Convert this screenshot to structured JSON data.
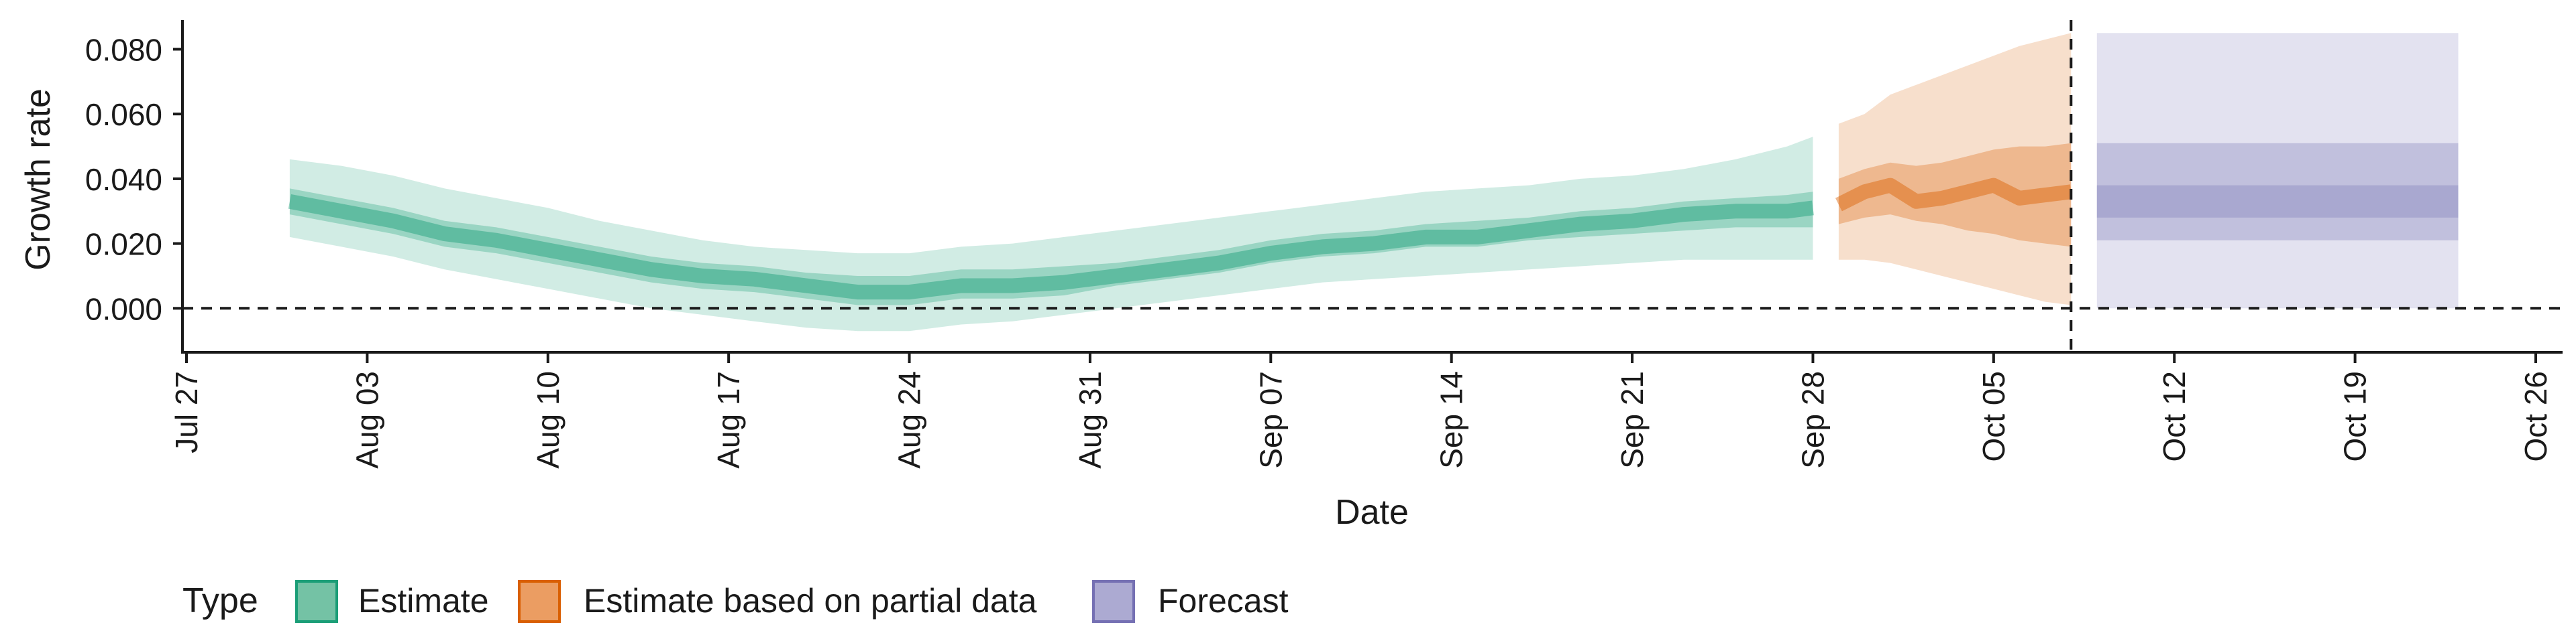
{
  "chart_data": {
    "type": "area",
    "xlabel": "Date",
    "ylabel": "Growth rate",
    "x_ticks": [
      "Jul 27",
      "Aug 03",
      "Aug 10",
      "Aug 17",
      "Aug 24",
      "Aug 31",
      "Sep 07",
      "Sep 14",
      "Sep 21",
      "Sep 28",
      "Oct 05",
      "Oct 12",
      "Oct 19",
      "Oct 26"
    ],
    "y_ticks": [
      "0.000",
      "0.020",
      "0.040",
      "0.060",
      "0.080"
    ],
    "xlim": [
      "2020-07-27",
      "2020-10-26"
    ],
    "ylim": [
      -0.014,
      0.089
    ],
    "reference_lines": {
      "horizontal_y": 0,
      "vertical_x": "2020-10-08"
    },
    "legend": {
      "title": "Type",
      "position": "bottom-left",
      "entries": [
        {
          "label": "Estimate",
          "color": "#1b9e77"
        },
        {
          "label": "Estimate based on partial data",
          "color": "#d95f02"
        },
        {
          "label": "Forecast",
          "color": "#7570b3"
        }
      ]
    },
    "series": [
      {
        "name": "Estimate",
        "color": "#1b9e77",
        "x": [
          "2020-07-31",
          "2020-08-02",
          "2020-08-04",
          "2020-08-06",
          "2020-08-08",
          "2020-08-10",
          "2020-08-12",
          "2020-08-14",
          "2020-08-16",
          "2020-08-18",
          "2020-08-20",
          "2020-08-22",
          "2020-08-24",
          "2020-08-26",
          "2020-08-28",
          "2020-08-30",
          "2020-09-01",
          "2020-09-03",
          "2020-09-05",
          "2020-09-07",
          "2020-09-09",
          "2020-09-11",
          "2020-09-13",
          "2020-09-15",
          "2020-09-17",
          "2020-09-19",
          "2020-09-21",
          "2020-09-23",
          "2020-09-25",
          "2020-09-27",
          "2020-09-28"
        ],
        "median": [
          0.033,
          0.03,
          0.027,
          0.023,
          0.021,
          0.018,
          0.015,
          0.012,
          0.01,
          0.009,
          0.007,
          0.005,
          0.005,
          0.007,
          0.007,
          0.008,
          0.01,
          0.012,
          0.014,
          0.017,
          0.019,
          0.02,
          0.022,
          0.022,
          0.024,
          0.026,
          0.027,
          0.029,
          0.03,
          0.03,
          0.031
        ],
        "lower_50": [
          0.029,
          0.026,
          0.023,
          0.019,
          0.017,
          0.014,
          0.011,
          0.008,
          0.006,
          0.005,
          0.003,
          0.001,
          0.001,
          0.003,
          0.003,
          0.004,
          0.007,
          0.009,
          0.011,
          0.014,
          0.016,
          0.017,
          0.019,
          0.019,
          0.021,
          0.022,
          0.023,
          0.024,
          0.025,
          0.025,
          0.025
        ],
        "upper_50": [
          0.037,
          0.034,
          0.031,
          0.027,
          0.025,
          0.022,
          0.019,
          0.016,
          0.014,
          0.013,
          0.011,
          0.01,
          0.01,
          0.012,
          0.012,
          0.013,
          0.014,
          0.016,
          0.018,
          0.021,
          0.023,
          0.024,
          0.026,
          0.027,
          0.028,
          0.03,
          0.031,
          0.033,
          0.034,
          0.035,
          0.036
        ],
        "lower_90": [
          0.022,
          0.019,
          0.016,
          0.012,
          0.009,
          0.006,
          0.003,
          0.0,
          -0.002,
          -0.004,
          -0.006,
          -0.007,
          -0.007,
          -0.005,
          -0.004,
          -0.002,
          0.0,
          0.002,
          0.004,
          0.006,
          0.008,
          0.009,
          0.01,
          0.011,
          0.012,
          0.013,
          0.014,
          0.015,
          0.015,
          0.015,
          0.015
        ],
        "upper_90": [
          0.046,
          0.044,
          0.041,
          0.037,
          0.034,
          0.031,
          0.027,
          0.024,
          0.021,
          0.019,
          0.018,
          0.017,
          0.017,
          0.019,
          0.02,
          0.022,
          0.024,
          0.026,
          0.028,
          0.03,
          0.032,
          0.034,
          0.036,
          0.037,
          0.038,
          0.04,
          0.041,
          0.043,
          0.046,
          0.05,
          0.053
        ]
      },
      {
        "name": "Estimate based on partial data",
        "color": "#d95f02",
        "x": [
          "2020-09-29",
          "2020-09-30",
          "2020-10-01",
          "2020-10-02",
          "2020-10-03",
          "2020-10-04",
          "2020-10-05",
          "2020-10-06",
          "2020-10-07",
          "2020-10-08"
        ],
        "median": [
          0.032,
          0.036,
          0.038,
          0.033,
          0.034,
          0.036,
          0.038,
          0.034,
          0.035,
          0.036
        ],
        "lower_50": [
          0.026,
          0.028,
          0.029,
          0.027,
          0.026,
          0.024,
          0.023,
          0.021,
          0.02,
          0.019
        ],
        "upper_50": [
          0.04,
          0.043,
          0.045,
          0.044,
          0.045,
          0.047,
          0.049,
          0.05,
          0.05,
          0.051
        ],
        "lower_90": [
          0.015,
          0.015,
          0.014,
          0.012,
          0.01,
          0.008,
          0.006,
          0.004,
          0.002,
          0.001
        ],
        "upper_90": [
          0.057,
          0.06,
          0.066,
          0.069,
          0.072,
          0.075,
          0.078,
          0.081,
          0.083,
          0.085
        ]
      },
      {
        "name": "Forecast",
        "color": "#7570b3",
        "x": [
          "2020-10-09",
          "2020-10-23"
        ],
        "lower_25": [
          0.028,
          0.028
        ],
        "upper_25": [
          0.038,
          0.038
        ],
        "lower_50": [
          0.021,
          0.021
        ],
        "upper_50": [
          0.051,
          0.051
        ],
        "lower_90": [
          0.0,
          0.0
        ],
        "upper_90": [
          0.085,
          0.085
        ]
      }
    ]
  }
}
